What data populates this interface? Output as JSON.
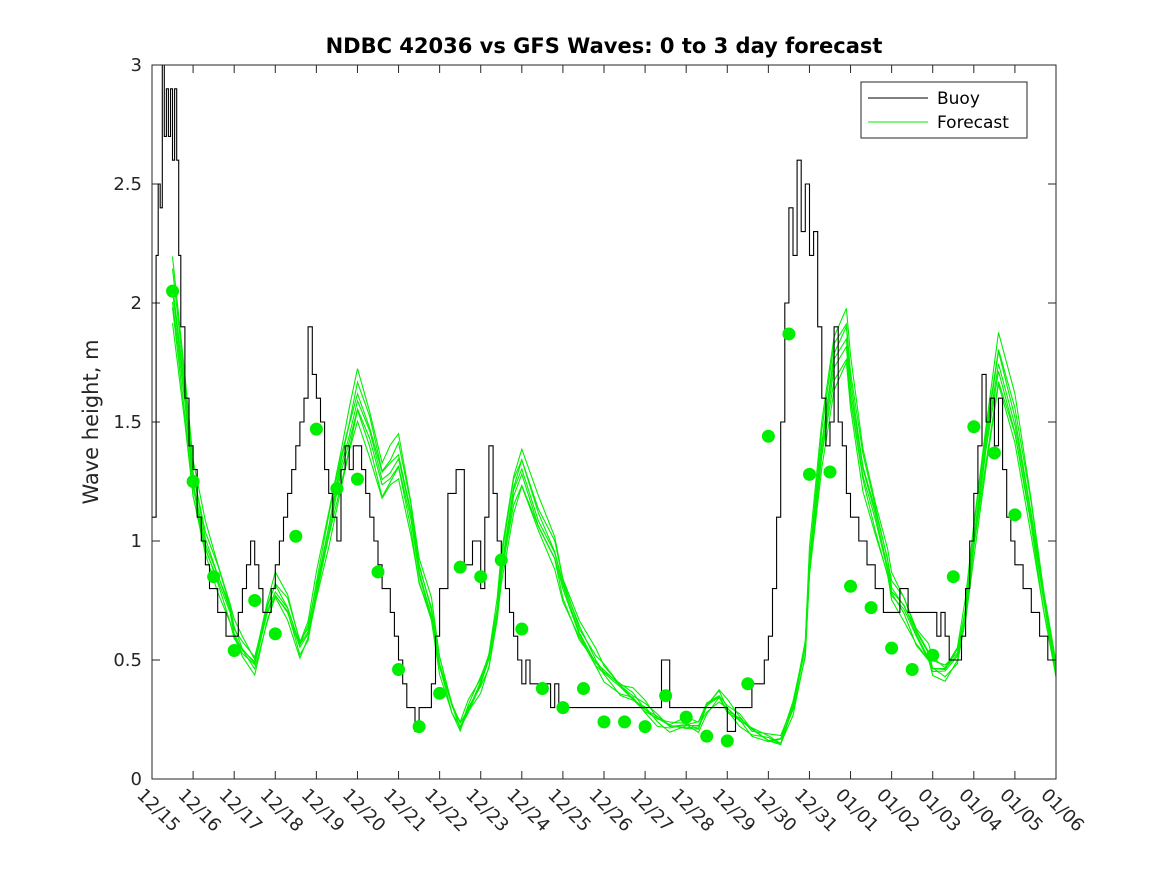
{
  "chart_data": {
    "type": "line",
    "title": "NDBC 42036 vs GFS Waves: 0 to 3 day forecast",
    "xlabel": "",
    "ylabel": "Wave height, m",
    "ylim": [
      0,
      3
    ],
    "yticks": [
      "0",
      "0.5",
      "1",
      "1.5",
      "2",
      "2.5",
      "3"
    ],
    "xlim_days": [
      0,
      22
    ],
    "xtick_labels": [
      "12/15",
      "12/16",
      "12/17",
      "12/18",
      "12/19",
      "12/20",
      "12/21",
      "12/22",
      "12/23",
      "12/24",
      "12/25",
      "12/26",
      "12/27",
      "12/28",
      "12/29",
      "12/30",
      "12/31",
      "01/01",
      "01/02",
      "01/03",
      "01/04",
      "01/05",
      "01/06"
    ],
    "legend": {
      "position": "top-right",
      "entries": [
        "Buoy",
        "Forecast"
      ]
    },
    "colors": {
      "buoy": "#000000",
      "forecast": "#00ee00",
      "marker": "#00ee00"
    },
    "series": [
      {
        "name": "Buoy",
        "x": [
          0,
          0.1,
          0.15,
          0.2,
          0.25,
          0.3,
          0.35,
          0.4,
          0.45,
          0.5,
          0.55,
          0.6,
          0.65,
          0.7,
          0.8,
          0.9,
          1.0,
          1.1,
          1.2,
          1.3,
          1.4,
          1.5,
          1.6,
          1.7,
          1.8,
          1.9,
          2.0,
          2.1,
          2.2,
          2.3,
          2.4,
          2.5,
          2.6,
          2.7,
          2.8,
          2.9,
          3.0,
          3.1,
          3.2,
          3.3,
          3.4,
          3.5,
          3.6,
          3.7,
          3.8,
          3.9,
          4.0,
          4.1,
          4.2,
          4.3,
          4.4,
          4.5,
          4.6,
          4.7,
          4.8,
          4.9,
          5.0,
          5.1,
          5.2,
          5.3,
          5.4,
          5.5,
          5.6,
          5.7,
          5.8,
          5.9,
          6.0,
          6.1,
          6.2,
          6.3,
          6.4,
          6.5,
          6.6,
          6.7,
          6.8,
          6.9,
          7.0,
          7.2,
          7.4,
          7.6,
          7.8,
          8.0,
          8.1,
          8.2,
          8.3,
          8.4,
          8.5,
          8.6,
          8.7,
          8.8,
          8.9,
          9.0,
          9.1,
          9.2,
          9.3,
          9.4,
          9.5,
          9.6,
          9.7,
          9.8,
          9.9,
          10.0,
          10.2,
          10.4,
          10.6,
          10.8,
          11.0,
          11.2,
          11.4,
          11.6,
          11.8,
          12.0,
          12.2,
          12.4,
          12.6,
          12.8,
          13.0,
          13.2,
          13.4,
          13.6,
          13.8,
          14.0,
          14.2,
          14.4,
          14.6,
          14.8,
          14.9,
          15.0,
          15.1,
          15.2,
          15.3,
          15.4,
          15.5,
          15.6,
          15.7,
          15.8,
          15.9,
          16.0,
          16.1,
          16.2,
          16.3,
          16.4,
          16.5,
          16.6,
          16.7,
          16.8,
          16.9,
          17.0,
          17.2,
          17.4,
          17.6,
          17.8,
          18.0,
          18.2,
          18.4,
          18.6,
          18.8,
          19.0,
          19.1,
          19.2,
          19.3,
          19.4,
          19.5,
          19.6,
          19.7,
          19.8,
          19.9,
          20.0,
          20.1,
          20.2,
          20.3,
          20.4,
          20.5,
          20.6,
          20.7,
          20.8,
          20.9,
          21.0,
          21.2,
          21.4,
          21.6,
          21.8,
          22.0
        ],
        "y": [
          1.1,
          2.2,
          2.5,
          2.4,
          3.0,
          2.7,
          2.9,
          2.7,
          2.9,
          2.6,
          2.9,
          2.6,
          2.2,
          1.9,
          1.6,
          1.4,
          1.3,
          1.1,
          1.0,
          0.9,
          0.8,
          0.8,
          0.7,
          0.7,
          0.6,
          0.6,
          0.6,
          0.7,
          0.8,
          0.9,
          1.0,
          0.9,
          0.8,
          0.7,
          0.7,
          0.8,
          0.9,
          1.0,
          1.1,
          1.2,
          1.3,
          1.4,
          1.5,
          1.6,
          1.9,
          1.7,
          1.6,
          1.5,
          1.3,
          1.2,
          1.1,
          1.0,
          1.3,
          1.4,
          1.3,
          1.4,
          1.4,
          1.3,
          1.2,
          1.1,
          1.0,
          0.9,
          0.8,
          0.8,
          0.7,
          0.6,
          0.5,
          0.4,
          0.3,
          0.3,
          0.2,
          0.3,
          0.3,
          0.3,
          0.4,
          0.6,
          0.8,
          1.2,
          1.3,
          0.9,
          1.0,
          0.8,
          1.1,
          1.4,
          1.2,
          1.0,
          0.9,
          0.8,
          0.7,
          0.6,
          0.5,
          0.4,
          0.5,
          0.4,
          0.4,
          0.4,
          0.4,
          0.4,
          0.3,
          0.4,
          0.3,
          0.3,
          0.3,
          0.3,
          0.3,
          0.3,
          0.3,
          0.3,
          0.3,
          0.3,
          0.3,
          0.3,
          0.3,
          0.5,
          0.3,
          0.3,
          0.3,
          0.3,
          0.3,
          0.3,
          0.3,
          0.2,
          0.3,
          0.3,
          0.4,
          0.4,
          0.5,
          0.6,
          0.8,
          1.1,
          1.5,
          2.0,
          2.4,
          2.2,
          2.6,
          2.3,
          2.5,
          2.2,
          2.3,
          1.9,
          1.6,
          1.4,
          1.5,
          1.9,
          1.5,
          1.4,
          1.2,
          1.1,
          1.0,
          0.9,
          0.8,
          0.7,
          0.7,
          0.8,
          0.7,
          0.7,
          0.7,
          0.7,
          0.6,
          0.7,
          0.6,
          0.5,
          0.5,
          0.5,
          0.6,
          0.8,
          1.0,
          1.2,
          1.4,
          1.7,
          1.5,
          1.6,
          1.4,
          1.6,
          1.3,
          1.1,
          1.0,
          0.9,
          0.8,
          0.7,
          0.6,
          0.5,
          0.5
        ]
      },
      {
        "name": "Forecast",
        "x": [
          0.5,
          0.8,
          1.0,
          1.3,
          1.6,
          1.9,
          2.0,
          2.2,
          2.5,
          2.8,
          3.0,
          3.3,
          3.6,
          3.8,
          4.0,
          4.3,
          4.6,
          4.8,
          5.0,
          5.3,
          5.6,
          5.8,
          6.0,
          6.3,
          6.5,
          6.8,
          7.0,
          7.3,
          7.5,
          7.7,
          8.0,
          8.2,
          8.4,
          8.5,
          8.8,
          9.0,
          9.4,
          9.8,
          10.0,
          10.4,
          10.8,
          11.0,
          11.4,
          11.7,
          12.0,
          12.3,
          12.6,
          13.0,
          13.3,
          13.5,
          13.8,
          14.0,
          14.3,
          14.6,
          15.0,
          15.3,
          15.6,
          15.9,
          16.0,
          16.3,
          16.6,
          16.9,
          17.0,
          17.3,
          17.6,
          17.9,
          18.0,
          18.3,
          18.6,
          18.9,
          19.0,
          19.3,
          19.6,
          19.8,
          20.0,
          20.3,
          20.6,
          21.0,
          21.4,
          21.7,
          22.0
        ],
        "y": [
          2.05,
          1.6,
          1.25,
          1.0,
          0.85,
          0.7,
          0.62,
          0.55,
          0.48,
          0.7,
          0.8,
          0.72,
          0.55,
          0.62,
          0.8,
          1.05,
          1.3,
          1.45,
          1.6,
          1.45,
          1.25,
          1.3,
          1.35,
          1.1,
          0.87,
          0.7,
          0.48,
          0.3,
          0.22,
          0.3,
          0.4,
          0.5,
          0.7,
          0.88,
          1.2,
          1.3,
          1.1,
          0.95,
          0.8,
          0.62,
          0.5,
          0.45,
          0.38,
          0.35,
          0.3,
          0.25,
          0.22,
          0.23,
          0.22,
          0.3,
          0.35,
          0.3,
          0.25,
          0.2,
          0.17,
          0.16,
          0.3,
          0.55,
          0.9,
          1.4,
          1.75,
          1.85,
          1.65,
          1.3,
          1.1,
          0.9,
          0.8,
          0.72,
          0.6,
          0.52,
          0.47,
          0.45,
          0.52,
          0.7,
          1.0,
          1.4,
          1.75,
          1.5,
          1.1,
          0.75,
          0.45
        ]
      }
    ],
    "markers": {
      "x": [
        0.5,
        1.0,
        1.5,
        2.0,
        2.5,
        3.0,
        3.5,
        4.0,
        4.5,
        5.0,
        5.5,
        6.0,
        6.5,
        7.0,
        7.5,
        8.0,
        8.5,
        9.0,
        9.5,
        10.0,
        10.5,
        11.0,
        11.5,
        12.0,
        12.5,
        13.0,
        13.5,
        14.0,
        14.5,
        15.0,
        15.5,
        16.0,
        16.5,
        17.0,
        17.5,
        18.0,
        18.5,
        19.0,
        19.5,
        20.0,
        20.5,
        21.0
      ],
      "y": [
        2.05,
        1.25,
        0.85,
        0.54,
        0.75,
        0.61,
        1.02,
        1.47,
        1.22,
        1.26,
        0.87,
        0.46,
        0.22,
        0.36,
        0.89,
        0.85,
        0.92,
        0.63,
        0.38,
        0.3,
        0.38,
        0.24,
        0.24,
        0.22,
        0.35,
        0.26,
        0.18,
        0.16,
        0.4,
        1.44,
        1.87,
        1.28,
        1.29,
        0.81,
        0.72,
        0.55,
        0.46,
        0.52,
        0.85,
        1.48,
        1.37,
        1.11
      ]
    }
  }
}
